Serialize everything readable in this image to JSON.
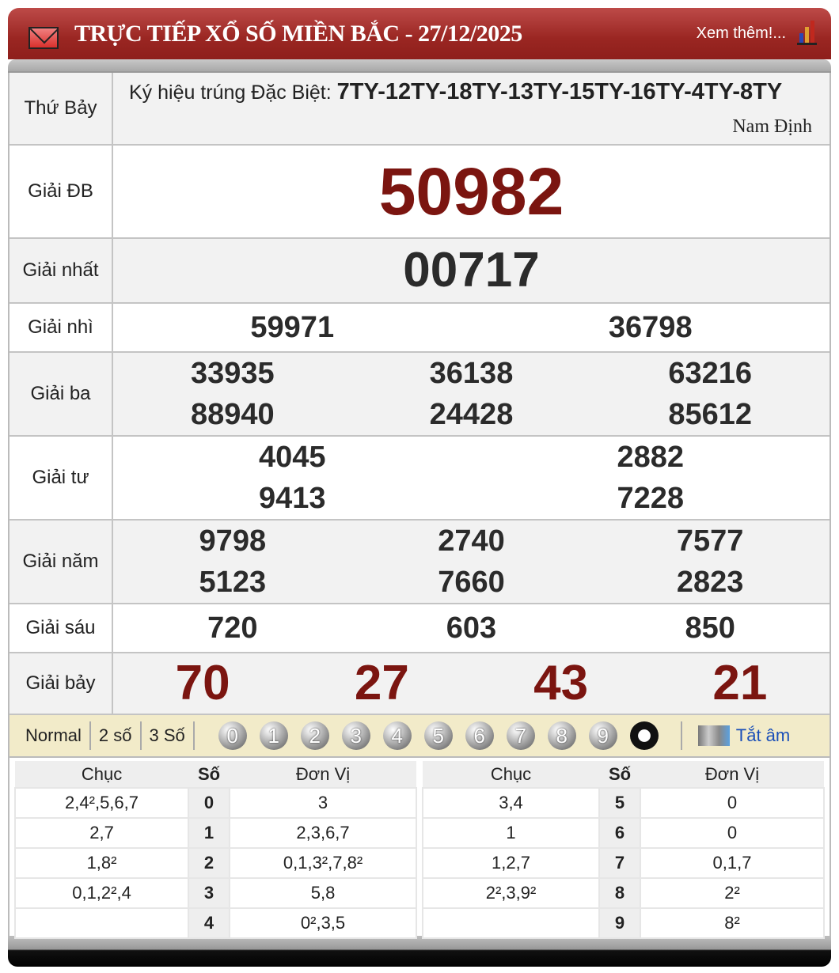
{
  "header": {
    "title": "TRỰC TIẾP XỔ SỐ MIỀN BẮC - 27/12/2025",
    "more": "Xem thêm!...",
    "icons": [
      "mail-icon",
      "bar-chart-icon"
    ]
  },
  "info": {
    "day": "Thứ Bảy",
    "symbol_label": "Ký hiệu trúng Đặc Biệt:",
    "symbols": "7TY-12TY-18TY-13TY-15TY-16TY-4TY-8TY",
    "province": "Nam Định"
  },
  "prizes": [
    {
      "label": "Giải ĐB",
      "numbers": [
        "50982"
      ]
    },
    {
      "label": "Giải nhất",
      "numbers": [
        "00717"
      ]
    },
    {
      "label": "Giải nhì",
      "numbers": [
        "59971",
        "36798"
      ]
    },
    {
      "label": "Giải ba",
      "numbers": [
        "33935",
        "36138",
        "63216",
        "88940",
        "24428",
        "85612"
      ]
    },
    {
      "label": "Giải tư",
      "numbers": [
        "4045",
        "2882",
        "9413",
        "7228"
      ]
    },
    {
      "label": "Giải năm",
      "numbers": [
        "9798",
        "2740",
        "7577",
        "5123",
        "7660",
        "2823"
      ]
    },
    {
      "label": "Giải sáu",
      "numbers": [
        "720",
        "603",
        "850"
      ]
    },
    {
      "label": "Giải bảy",
      "numbers": [
        "70",
        "27",
        "43",
        "21"
      ]
    }
  ],
  "filter": {
    "options": [
      "Normal",
      "2 số",
      "3 Số"
    ],
    "digits": [
      "0",
      "1",
      "2",
      "3",
      "4",
      "5",
      "6",
      "7",
      "8",
      "9"
    ],
    "mute": "Tắt âm"
  },
  "loto": {
    "headers": [
      "Chục",
      "Số",
      "Đơn Vị"
    ],
    "rows": [
      {
        "chuc": "2,4²,5,6,7",
        "so": "0",
        "donvi": "3"
      },
      {
        "chuc": "2,7",
        "so": "1",
        "donvi": "2,3,6,7"
      },
      {
        "chuc": "1,8²",
        "so": "2",
        "donvi": "0,1,3²,7,8²"
      },
      {
        "chuc": "0,1,2²,4",
        "so": "3",
        "donvi": "5,8"
      },
      {
        "chuc": "",
        "so": "4",
        "donvi": "0²,3,5"
      },
      {
        "chuc": "3,4",
        "so": "5",
        "donvi": "0"
      },
      {
        "chuc": "1",
        "so": "6",
        "donvi": "0"
      },
      {
        "chuc": "1,2,7",
        "so": "7",
        "donvi": "0,1,7"
      },
      {
        "chuc": "2²,3,9²",
        "so": "8",
        "donvi": "2²"
      },
      {
        "chuc": "",
        "so": "9",
        "donvi": "8²"
      }
    ]
  },
  "colors": {
    "header_red": "#9a2622",
    "highlight_red": "#7b1510",
    "filter_bg": "#f2ebc9",
    "link_blue": "#1a4fb8"
  }
}
